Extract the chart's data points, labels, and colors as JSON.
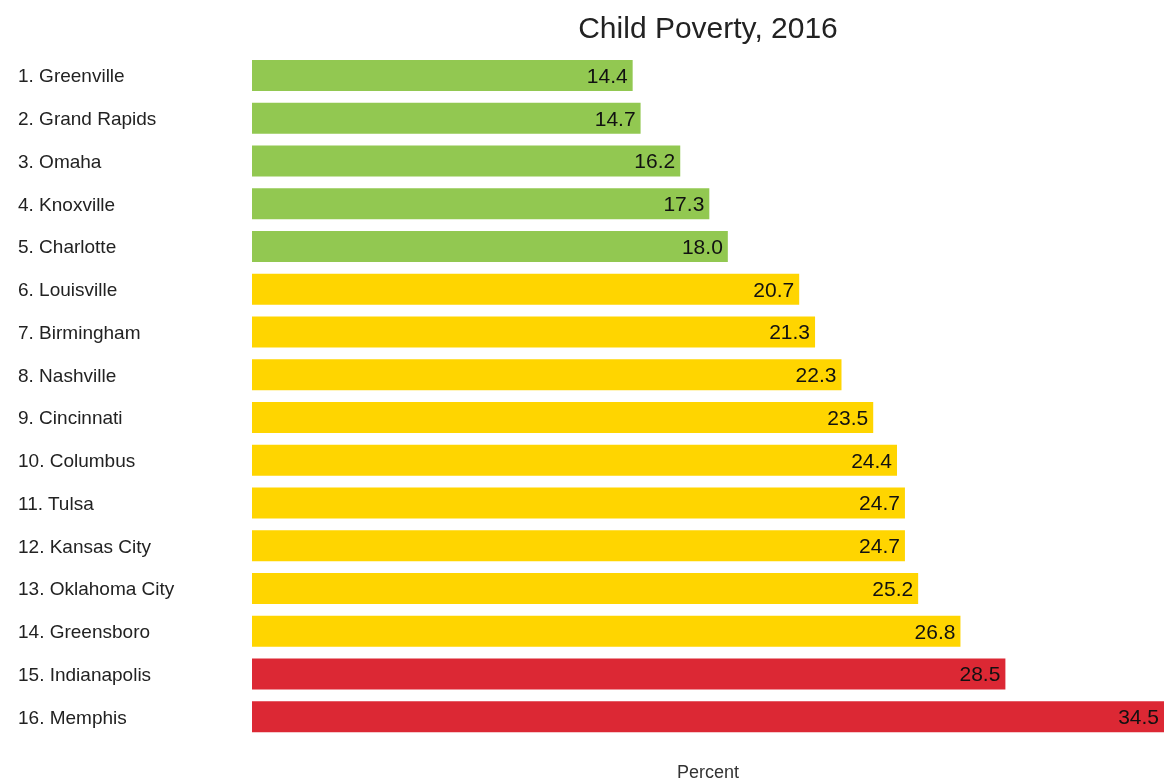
{
  "chart_data": {
    "type": "bar",
    "orientation": "horizontal",
    "title": "Child Poverty, 2016",
    "xlabel": "Percent",
    "categories": [
      "1. Greenville",
      "2. Grand Rapids",
      "3. Omaha",
      "4. Knoxville",
      "5. Charlotte",
      "6. Louisville",
      "7. Birmingham",
      "8. Nashville",
      "9. Cincinnati",
      "10. Columbus",
      "11. Tulsa",
      "12. Kansas City",
      "13. Oklahoma City",
      "14. Greensboro",
      "15. Indianapolis",
      "16. Memphis"
    ],
    "values": [
      14.4,
      14.7,
      16.2,
      17.3,
      18.0,
      20.7,
      21.3,
      22.3,
      23.5,
      24.4,
      24.7,
      24.7,
      25.2,
      26.8,
      28.5,
      34.5
    ],
    "value_labels": [
      "14.4",
      "14.7",
      "16.2",
      "17.3",
      "18.0",
      "20.7",
      "21.3",
      "22.3",
      "23.5",
      "24.4",
      "24.7",
      "24.7",
      "25.2",
      "26.8",
      "28.5",
      "34.5"
    ],
    "colors": [
      "#92c851",
      "#92c851",
      "#92c851",
      "#92c851",
      "#92c851",
      "#ffd500",
      "#ffd500",
      "#ffd500",
      "#ffd500",
      "#ffd500",
      "#ffd500",
      "#ffd500",
      "#ffd500",
      "#ffd500",
      "#dc2834",
      "#dc2834"
    ],
    "data_labels": true
  }
}
